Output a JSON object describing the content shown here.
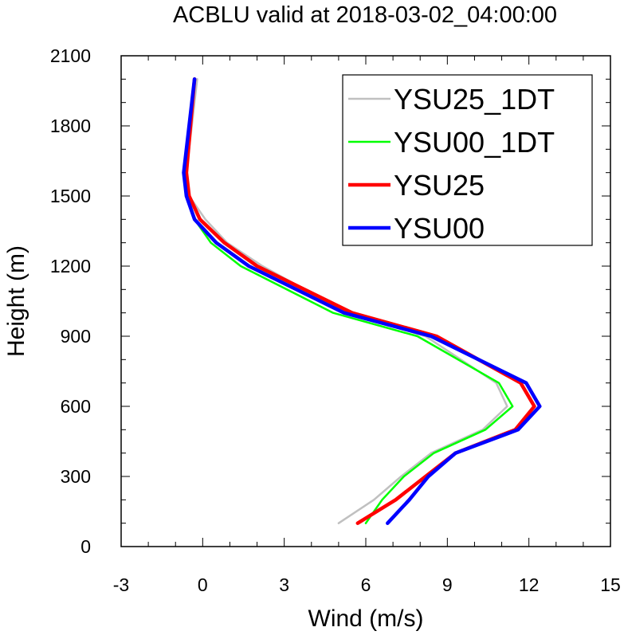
{
  "chart_data": {
    "type": "line",
    "title": "ACBLU valid at 2018-03-02_04:00:00",
    "xlabel": "Wind (m/s)",
    "ylabel": "Height (m)",
    "xlim": [
      -3,
      15
    ],
    "ylim": [
      0,
      2100
    ],
    "xticks": [
      "-3",
      "0",
      "3",
      "6",
      "9",
      "12",
      "15"
    ],
    "yticks": [
      "0",
      "300",
      "600",
      "900",
      "1200",
      "1500",
      "1800",
      "2100"
    ],
    "grid": false,
    "legend_position": "top-right",
    "series": [
      {
        "name": "YSU25_1DT",
        "color": "#c0c0c0",
        "width": "thin",
        "points": [
          [
            5.0,
            100
          ],
          [
            6.3,
            200
          ],
          [
            7.3,
            300
          ],
          [
            8.4,
            400
          ],
          [
            10.3,
            500
          ],
          [
            11.2,
            600
          ],
          [
            10.8,
            700
          ],
          [
            8.2,
            900
          ],
          [
            5.3,
            1000
          ],
          [
            2.2,
            1200
          ],
          [
            0.9,
            1300
          ],
          [
            0.1,
            1400
          ],
          [
            -0.5,
            1500
          ],
          [
            -0.6,
            1600
          ],
          [
            -0.2,
            2000
          ]
        ]
      },
      {
        "name": "YSU00_1DT",
        "color": "#00ff00",
        "width": "thin",
        "points": [
          [
            6.0,
            100
          ],
          [
            6.6,
            200
          ],
          [
            7.4,
            300
          ],
          [
            8.5,
            400
          ],
          [
            10.4,
            500
          ],
          [
            11.4,
            600
          ],
          [
            10.9,
            700
          ],
          [
            7.9,
            900
          ],
          [
            4.8,
            1000
          ],
          [
            1.4,
            1200
          ],
          [
            0.3,
            1300
          ],
          [
            -0.3,
            1400
          ],
          [
            -0.6,
            1500
          ],
          [
            -0.7,
            1600
          ],
          [
            -0.3,
            2000
          ]
        ]
      },
      {
        "name": "YSU25",
        "color": "#ff0000",
        "width": "thick",
        "points": [
          [
            5.7,
            100
          ],
          [
            7.1,
            200
          ],
          [
            8.2,
            300
          ],
          [
            9.3,
            400
          ],
          [
            11.5,
            500
          ],
          [
            12.2,
            600
          ],
          [
            11.7,
            700
          ],
          [
            8.6,
            900
          ],
          [
            5.5,
            1000
          ],
          [
            2.0,
            1200
          ],
          [
            0.8,
            1300
          ],
          [
            -0.1,
            1400
          ],
          [
            -0.5,
            1500
          ],
          [
            -0.6,
            1600
          ],
          [
            -0.3,
            2000
          ]
        ]
      },
      {
        "name": "YSU00",
        "color": "#0000ff",
        "width": "thick",
        "points": [
          [
            6.8,
            100
          ],
          [
            7.6,
            200
          ],
          [
            8.3,
            300
          ],
          [
            9.3,
            400
          ],
          [
            11.6,
            500
          ],
          [
            12.4,
            600
          ],
          [
            11.9,
            700
          ],
          [
            8.4,
            900
          ],
          [
            5.2,
            1000
          ],
          [
            1.7,
            1200
          ],
          [
            0.5,
            1300
          ],
          [
            -0.3,
            1400
          ],
          [
            -0.6,
            1500
          ],
          [
            -0.7,
            1600
          ],
          [
            -0.3,
            2000
          ]
        ]
      }
    ]
  }
}
